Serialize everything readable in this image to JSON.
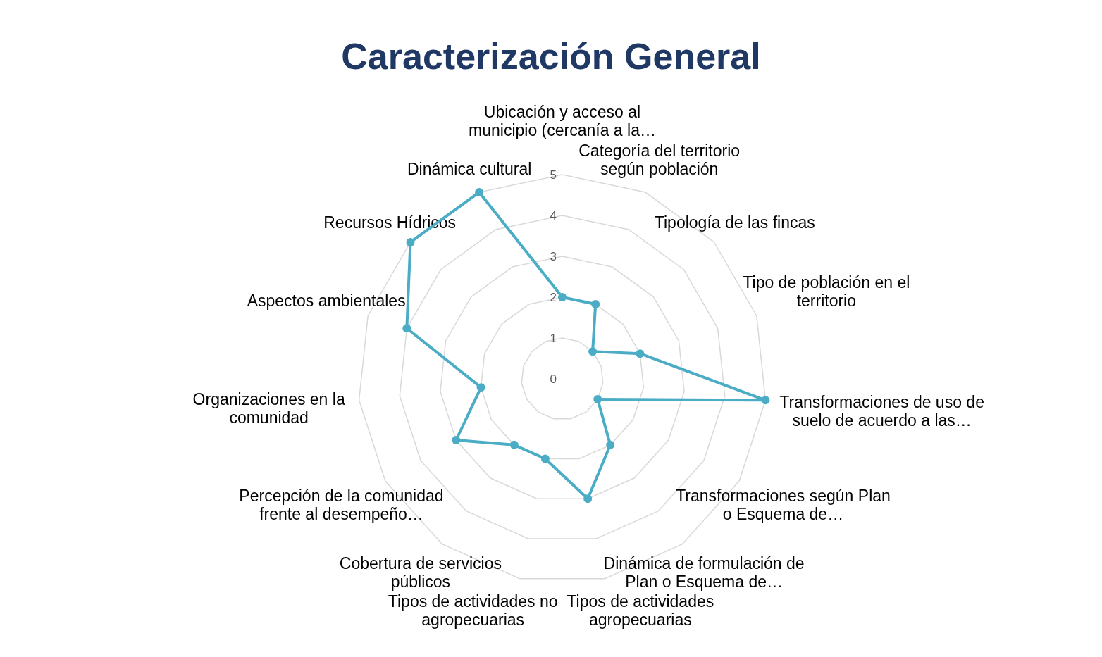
{
  "chart_data": {
    "type": "radar",
    "title": "Caracterización General",
    "categories": [
      "Ubicación y acceso al municipio (cercanía a la…",
      "Categoría del territorio según población",
      "Tipología de las fincas",
      "Tipo de población en el territorio",
      "Transformaciones de uso de suelo de acuerdo a las…",
      "Transformaciones según Plan o Esquema de…",
      "Dinámica de formulación de Plan o Esquema de…",
      "Tipos de actividades agropecuarias",
      "Tipos de actividades no agropecuarias",
      "Cobertura de servicios públicos",
      "Percepción de la comunidad frente al desempeño…",
      "Organizaciones en la comunidad",
      "Aspectos ambientales",
      "Recursos Hídricos",
      "Dinámica cultural"
    ],
    "series": [
      {
        "color": "#4bacc6",
        "values": [
          2,
          2,
          1,
          2,
          5,
          1,
          2,
          3,
          2,
          2,
          3,
          2,
          4,
          5,
          5
        ]
      }
    ],
    "ylim": [
      0,
      5
    ],
    "yticks": [
      0,
      1,
      2,
      3,
      4,
      5
    ],
    "grid": true,
    "marker": "circle"
  }
}
